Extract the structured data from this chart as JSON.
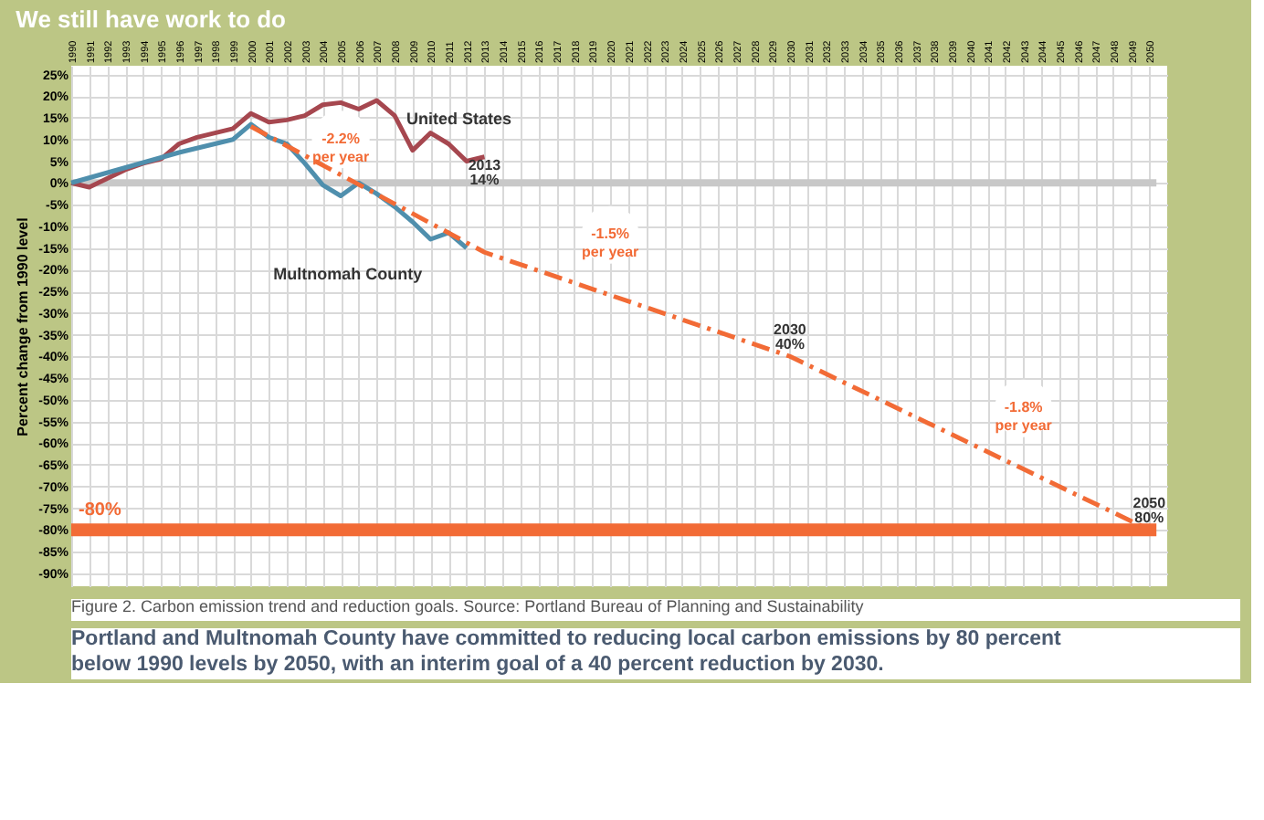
{
  "chart_data": {
    "type": "line",
    "title": "We still have work to do",
    "ylabel": "Percent change from 1990 level",
    "xlim": [
      1990,
      2051
    ],
    "ylim": [
      -93,
      27
    ],
    "xticks": [
      1990,
      1991,
      1992,
      1993,
      1994,
      1995,
      1996,
      1997,
      1998,
      1999,
      2000,
      2001,
      2002,
      2003,
      2004,
      2005,
      2006,
      2007,
      2008,
      2009,
      2010,
      2011,
      2012,
      2013,
      2014,
      2015,
      2016,
      2017,
      2018,
      2019,
      2020,
      2021,
      2022,
      2023,
      2024,
      2025,
      2026,
      2027,
      2028,
      2029,
      2030,
      2031,
      2032,
      2033,
      2034,
      2035,
      2036,
      2037,
      2038,
      2039,
      2040,
      2041,
      2042,
      2043,
      2044,
      2045,
      2046,
      2047,
      2048,
      2049,
      2050
    ],
    "yticks": [
      {
        "value": 25,
        "label": "25%"
      },
      {
        "value": 20,
        "label": "20%"
      },
      {
        "value": 15,
        "label": "15%"
      },
      {
        "value": 10,
        "label": "10%"
      },
      {
        "value": 5,
        "label": "5%"
      },
      {
        "value": 0,
        "label": "0%"
      },
      {
        "value": -5,
        "label": "-5%"
      },
      {
        "value": -10,
        "label": "-10%"
      },
      {
        "value": -15,
        "label": "-15%"
      },
      {
        "value": -20,
        "label": "-20%"
      },
      {
        "value": -25,
        "label": "-25%"
      },
      {
        "value": -30,
        "label": "-30%"
      },
      {
        "value": -35,
        "label": "-35%"
      },
      {
        "value": -40,
        "label": "-40%"
      },
      {
        "value": -45,
        "label": "-45%"
      },
      {
        "value": -50,
        "label": "-50%"
      },
      {
        "value": -55,
        "label": "-55%"
      },
      {
        "value": -60,
        "label": "-60%"
      },
      {
        "value": -65,
        "label": "-65%"
      },
      {
        "value": -70,
        "label": "-70%"
      },
      {
        "value": -75,
        "label": "-75%"
      },
      {
        "value": -80,
        "label": "-80%"
      },
      {
        "value": -85,
        "label": "-85%"
      },
      {
        "value": -90,
        "label": "-90%"
      }
    ],
    "grid": true,
    "marker": "none",
    "series": [
      {
        "name": "United States",
        "color": "#a6474f",
        "line_style": "solid",
        "x": [
          1990,
          1991,
          1992,
          1993,
          1994,
          1995,
          1996,
          1997,
          1998,
          1999,
          2000,
          2001,
          2002,
          2003,
          2004,
          2005,
          2006,
          2007,
          2008,
          2009,
          2010,
          2011,
          2012,
          2013
        ],
        "values": [
          0,
          -1,
          1,
          3,
          4.5,
          5.5,
          9,
          10.5,
          11.5,
          12.5,
          16,
          14,
          14.5,
          15.5,
          18,
          18.5,
          17,
          19,
          15.5,
          7.5,
          11.5,
          9,
          5,
          6
        ]
      },
      {
        "name": "Multnomah County",
        "color": "#4f8fad",
        "line_style": "solid",
        "x": [
          1990,
          1996,
          1999,
          2000,
          2001,
          2002,
          2003,
          2004,
          2005,
          2006,
          2007,
          2008,
          2009,
          2010,
          2011,
          2012
        ],
        "values": [
          0,
          7,
          10,
          13.5,
          10.5,
          9,
          4.5,
          -0.5,
          -3,
          0,
          -2.5,
          -5.5,
          -9,
          -13,
          -11.5,
          -15
        ]
      },
      {
        "color": "#f26b36",
        "line_style": "dashed",
        "x": [
          2000,
          2013,
          2030,
          2050
        ],
        "values": [
          13,
          -16,
          -40,
          -80
        ]
      }
    ],
    "ref_lines": [
      {
        "axis": "y",
        "value": 0,
        "color": "#c8c8c8"
      },
      {
        "axis": "y",
        "value": -80,
        "label": "-80%",
        "color": "#f26b36"
      }
    ],
    "annotations": [
      {
        "text": "-2.2% per year",
        "x": 2005,
        "y": 10
      },
      {
        "text": "-1.5% per year",
        "x": 2020,
        "y": -12
      },
      {
        "text": "-1.8% per year",
        "x": 2043,
        "y": -52
      },
      "2013",
      {
        "text": "14%",
        "x": 2013,
        "y": -2
      },
      "2030",
      {
        "text": "40%",
        "x": 2030,
        "y": -40
      },
      "2050",
      {
        "text": "80%",
        "x": 2050,
        "y": -80
      },
      "Figure 2. Carbon emission trend and reduction goals. Source: Portland Bureau of Planning and Sustainability",
      "Portland and Multnomah County have committed to reducing local carbon emissions by 80 percent below 1990 levels by 2050, with an interim goal of a 40 percent reduction by 2030."
    ]
  }
}
